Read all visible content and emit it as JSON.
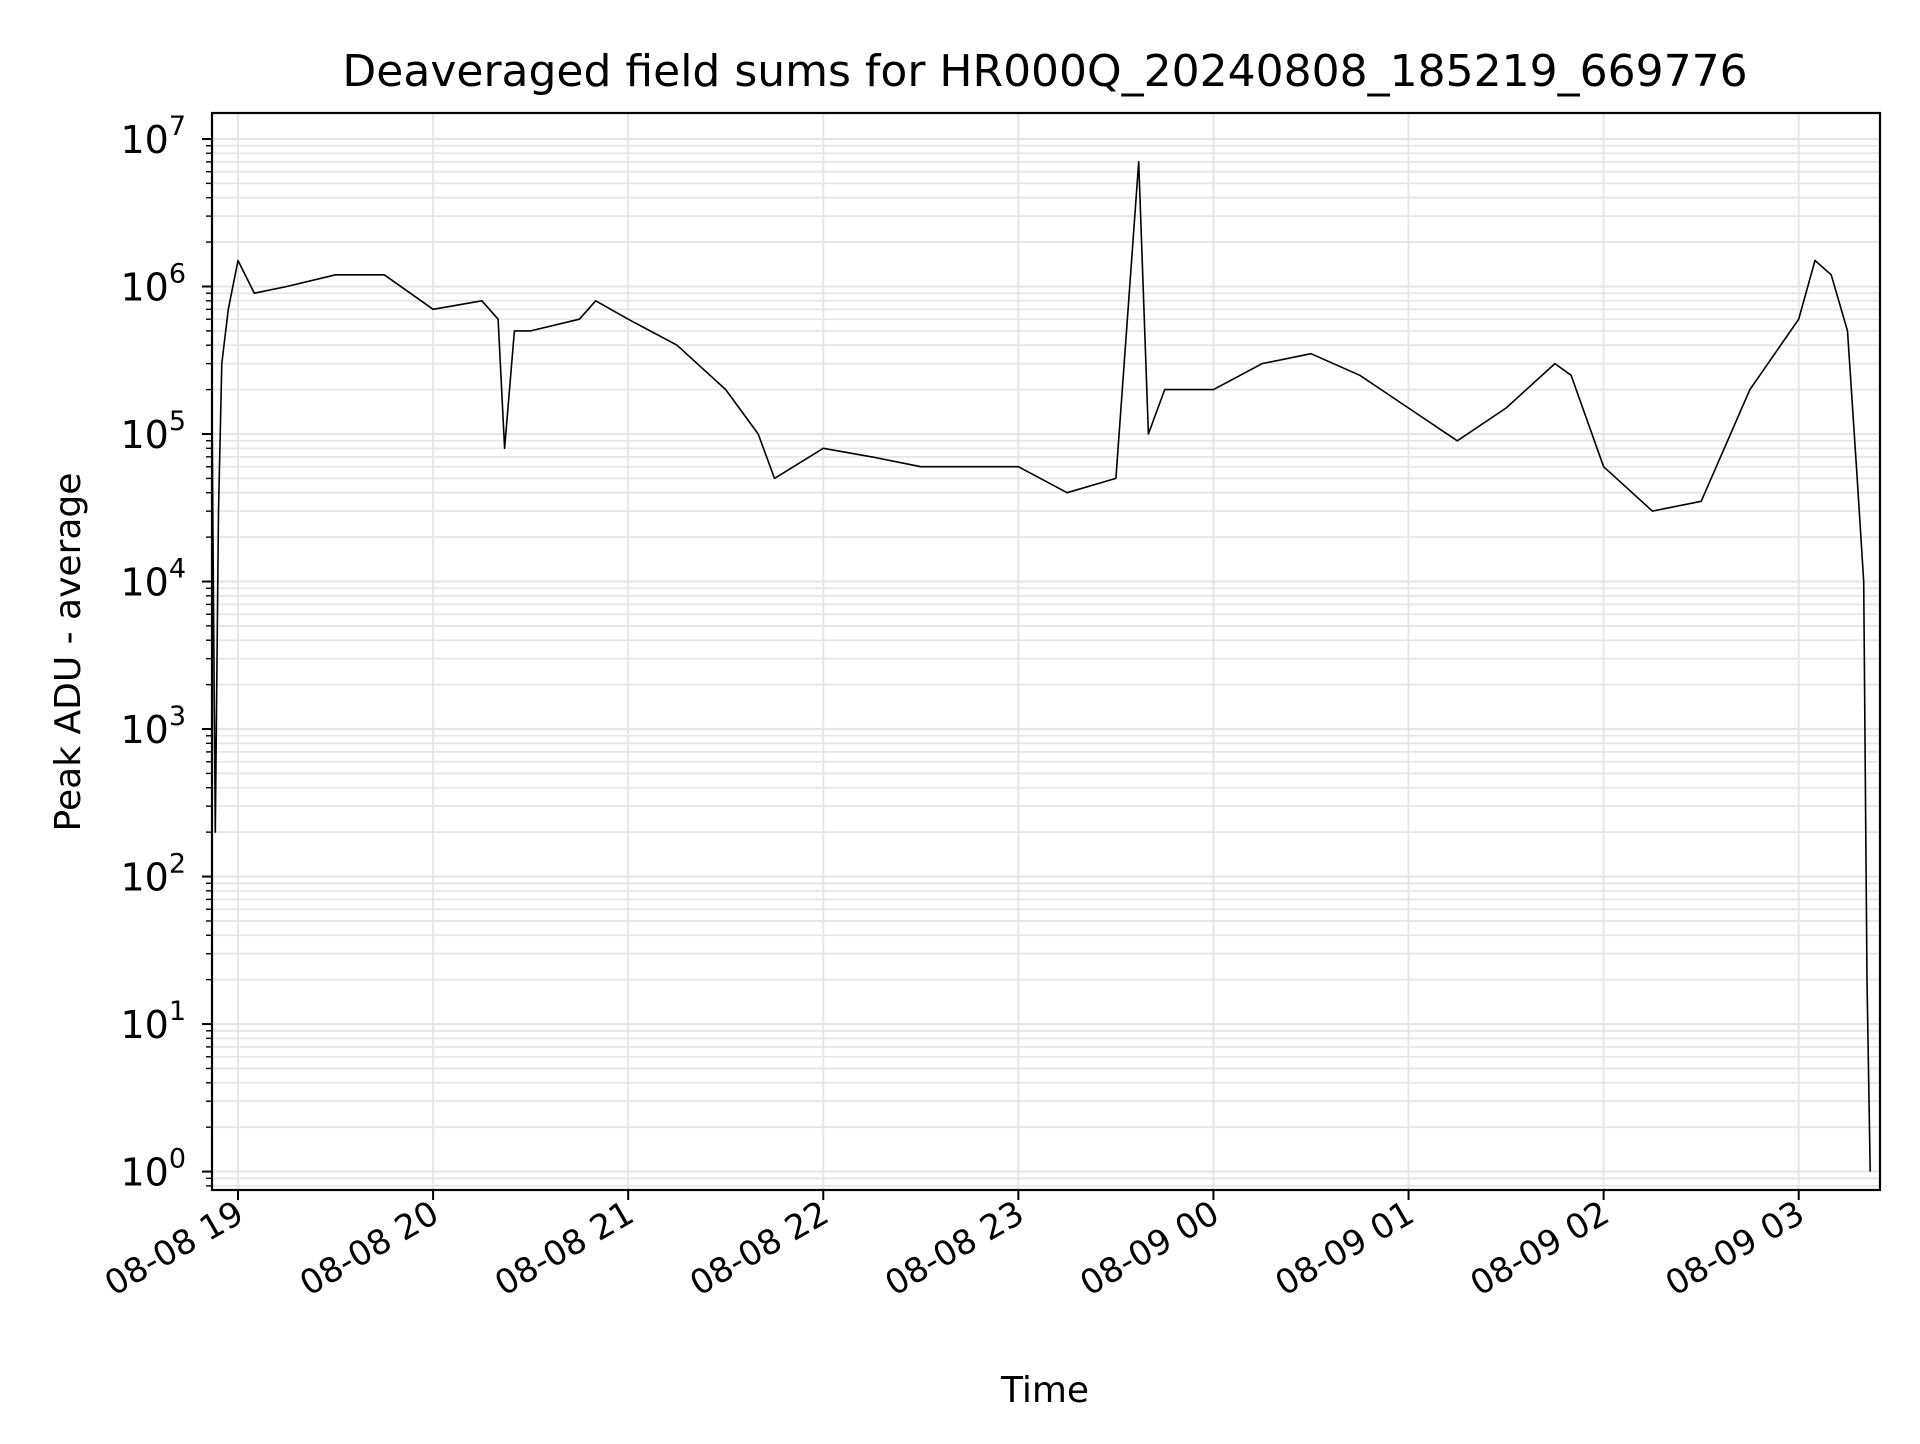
{
  "chart_data": {
    "type": "line",
    "title": "Deaveraged field sums for HR000Q_20240808_185219_669776",
    "xlabel": "Time",
    "ylabel": "Peak ADU - average",
    "yscale": "log",
    "ylim": [
      0.75,
      15000000
    ],
    "xlim": [
      "2024-08-08 18:52",
      "2024-08-09 03:25"
    ],
    "grid": "major and minor",
    "legend": "none",
    "series_color": "#000000",
    "grid_color": "#e6e6e6",
    "x_ticks": [
      {
        "value": "2024-08-08 19:00",
        "label": "08-08 19"
      },
      {
        "value": "2024-08-08 20:00",
        "label": "08-08 20"
      },
      {
        "value": "2024-08-08 21:00",
        "label": "08-08 21"
      },
      {
        "value": "2024-08-08 22:00",
        "label": "08-08 22"
      },
      {
        "value": "2024-08-08 23:00",
        "label": "08-08 23"
      },
      {
        "value": "2024-08-09 00:00",
        "label": "08-09 00"
      },
      {
        "value": "2024-08-09 01:00",
        "label": "08-09 01"
      },
      {
        "value": "2024-08-09 02:00",
        "label": "08-09 02"
      },
      {
        "value": "2024-08-09 03:00",
        "label": "08-09 03"
      }
    ],
    "y_ticks": [
      {
        "value": 1,
        "base": "10",
        "exp": "0"
      },
      {
        "value": 10,
        "base": "10",
        "exp": "1"
      },
      {
        "value": 100,
        "base": "10",
        "exp": "2"
      },
      {
        "value": 1000,
        "base": "10",
        "exp": "3"
      },
      {
        "value": 10000,
        "base": "10",
        "exp": "4"
      },
      {
        "value": 100000,
        "base": "10",
        "exp": "5"
      },
      {
        "value": 1000000,
        "base": "10",
        "exp": "6"
      },
      {
        "value": 10000000,
        "base": "10",
        "exp": "7"
      }
    ],
    "series": [
      {
        "x": [
          "2024-08-08 18:52",
          "2024-08-08 18:53",
          "2024-08-08 18:54",
          "2024-08-08 18:55",
          "2024-08-08 18:57",
          "2024-08-08 19:00",
          "2024-08-08 19:05",
          "2024-08-08 19:15",
          "2024-08-08 19:30",
          "2024-08-08 19:45",
          "2024-08-08 20:00",
          "2024-08-08 20:15",
          "2024-08-08 20:20",
          "2024-08-08 20:22",
          "2024-08-08 20:25",
          "2024-08-08 20:30",
          "2024-08-08 20:45",
          "2024-08-08 20:50",
          "2024-08-08 21:00",
          "2024-08-08 21:15",
          "2024-08-08 21:30",
          "2024-08-08 21:40",
          "2024-08-08 21:45",
          "2024-08-08 22:00",
          "2024-08-08 22:15",
          "2024-08-08 22:30",
          "2024-08-08 22:45",
          "2024-08-08 23:00",
          "2024-08-08 23:15",
          "2024-08-08 23:30",
          "2024-08-08 23:37",
          "2024-08-08 23:40",
          "2024-08-08 23:45",
          "2024-08-09 00:00",
          "2024-08-09 00:15",
          "2024-08-09 00:30",
          "2024-08-09 00:45",
          "2024-08-09 01:00",
          "2024-08-09 01:15",
          "2024-08-09 01:30",
          "2024-08-09 01:45",
          "2024-08-09 01:50",
          "2024-08-09 02:00",
          "2024-08-09 02:15",
          "2024-08-09 02:30",
          "2024-08-09 02:45",
          "2024-08-09 03:00",
          "2024-08-09 03:05",
          "2024-08-09 03:10",
          "2024-08-09 03:15",
          "2024-08-09 03:18",
          "2024-08-09 03:20",
          "2024-08-09 03:21",
          "2024-08-09 03:22"
        ],
        "values": [
          150000,
          200,
          30000,
          300000,
          700000,
          1500000,
          900000,
          1000000,
          1200000,
          1200000,
          700000,
          800000,
          600000,
          80000,
          500000,
          500000,
          600000,
          800000,
          600000,
          400000,
          200000,
          100000,
          50000,
          80000,
          70000,
          60000,
          60000,
          60000,
          40000,
          50000,
          7000000,
          100000,
          200000,
          200000,
          300000,
          350000,
          250000,
          150000,
          90000,
          150000,
          300000,
          250000,
          60000,
          30000,
          35000,
          200000,
          600000,
          1500000,
          1200000,
          500000,
          50000,
          10000,
          20,
          1
        ]
      }
    ]
  }
}
